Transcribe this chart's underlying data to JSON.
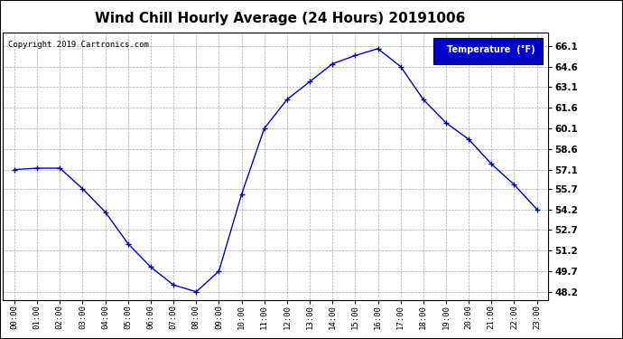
{
  "title": "Wind Chill Hourly Average (24 Hours) 20191006",
  "copyright_text": "Copyright 2019 Cartronics.com",
  "legend_label": "Temperature  (°F)",
  "hours": [
    0,
    1,
    2,
    3,
    4,
    5,
    6,
    7,
    8,
    9,
    10,
    11,
    12,
    13,
    14,
    15,
    16,
    17,
    18,
    19,
    20,
    21,
    22,
    23
  ],
  "x_labels": [
    "00:00",
    "01:00",
    "02:00",
    "03:00",
    "04:00",
    "05:00",
    "06:00",
    "07:00",
    "08:00",
    "09:00",
    "10:00",
    "11:00",
    "12:00",
    "13:00",
    "14:00",
    "15:00",
    "16:00",
    "17:00",
    "18:00",
    "19:00",
    "20:00",
    "21:00",
    "22:00",
    "23:00"
  ],
  "values": [
    57.1,
    57.2,
    57.2,
    55.7,
    54.0,
    51.7,
    50.0,
    48.7,
    48.2,
    49.7,
    55.3,
    60.1,
    62.2,
    63.5,
    64.8,
    65.4,
    65.9,
    64.6,
    62.2,
    60.5,
    59.3,
    57.5,
    56.0,
    54.2
  ],
  "ylim": [
    47.6,
    67.1
  ],
  "yticks": [
    48.2,
    49.7,
    51.2,
    52.7,
    54.2,
    55.7,
    57.1,
    58.6,
    60.1,
    61.6,
    63.1,
    64.6,
    66.1
  ],
  "line_color": "#0000cc",
  "marker_color": "#000088",
  "bg_color": "#ffffff",
  "grid_color": "#aaaaaa",
  "title_fontsize": 11,
  "legend_bg": "#0000cc",
  "legend_text_color": "#ffffff",
  "outer_border_color": "#000000"
}
